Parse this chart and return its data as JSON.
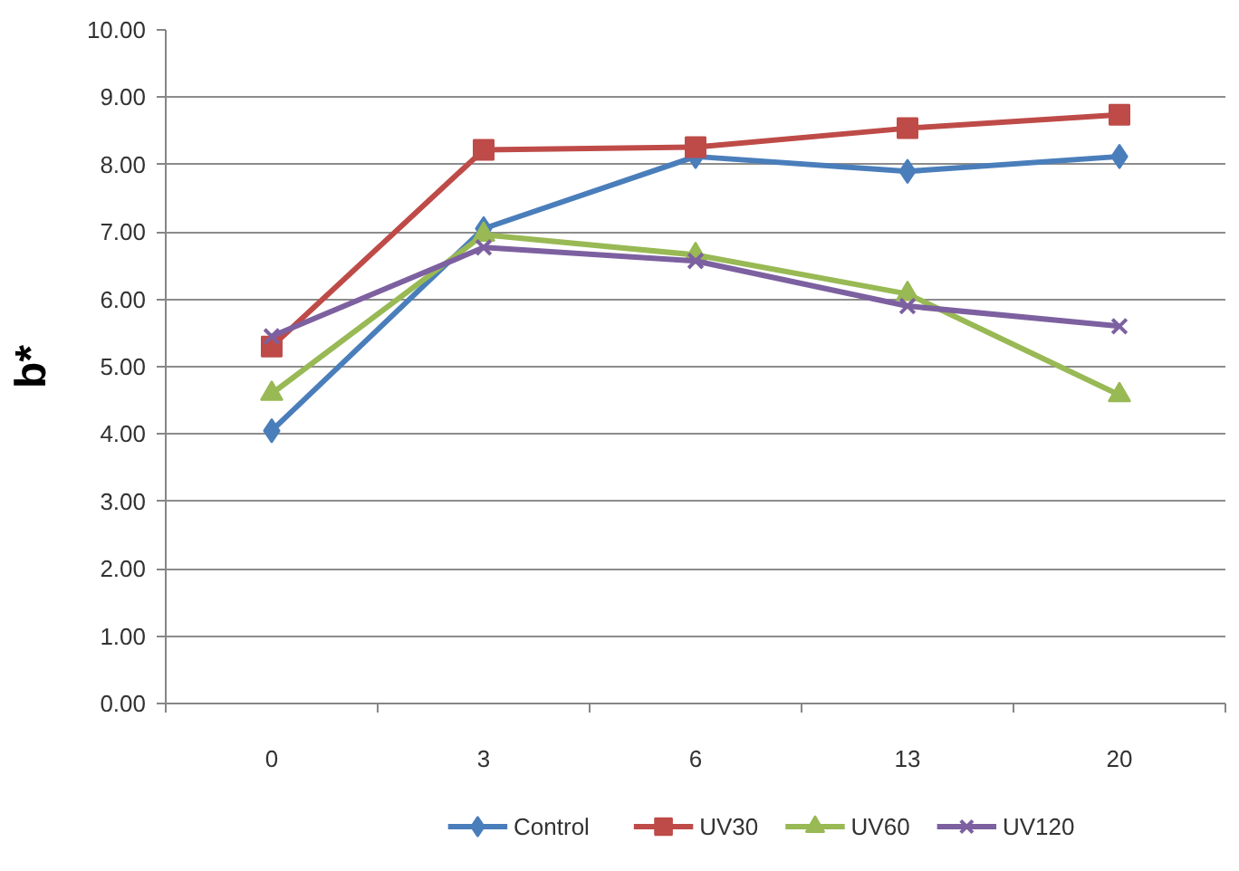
{
  "chart_data": {
    "type": "line",
    "ylabel": "b*",
    "categories": [
      "0",
      "3",
      "6",
      "13",
      "20"
    ],
    "series": [
      {
        "name": "Control",
        "color": "#4a7ebb",
        "marker": "diamond",
        "values": [
          4.05,
          7.05,
          8.12,
          7.9,
          8.12
        ]
      },
      {
        "name": "UV30",
        "color": "#be4b48",
        "marker": "square",
        "values": [
          5.3,
          8.22,
          8.26,
          8.54,
          8.74
        ]
      },
      {
        "name": "UV60",
        "color": "#98b954",
        "marker": "triangle",
        "values": [
          4.6,
          6.96,
          6.66,
          6.08,
          4.58
        ]
      },
      {
        "name": "UV120",
        "color": "#7d60a0",
        "marker": "cross",
        "values": [
          5.45,
          6.77,
          6.57,
          5.9,
          5.6
        ]
      }
    ],
    "ylim": [
      0,
      10
    ],
    "yticks": [
      {
        "value": 0,
        "label": "0.00"
      },
      {
        "value": 1,
        "label": "1.00"
      },
      {
        "value": 2,
        "label": "2.00"
      },
      {
        "value": 3,
        "label": "3.00"
      },
      {
        "value": 4,
        "label": "4.00"
      },
      {
        "value": 5,
        "label": "5.00"
      },
      {
        "value": 6,
        "label": "6.00"
      },
      {
        "value": 7,
        "label": "7.00"
      },
      {
        "value": 8,
        "label": "8.00"
      },
      {
        "value": 9,
        "label": "9.00"
      },
      {
        "value": 10,
        "label": "10.00"
      }
    ],
    "grid": "y",
    "legend": "bottom",
    "line_style": "solid"
  }
}
